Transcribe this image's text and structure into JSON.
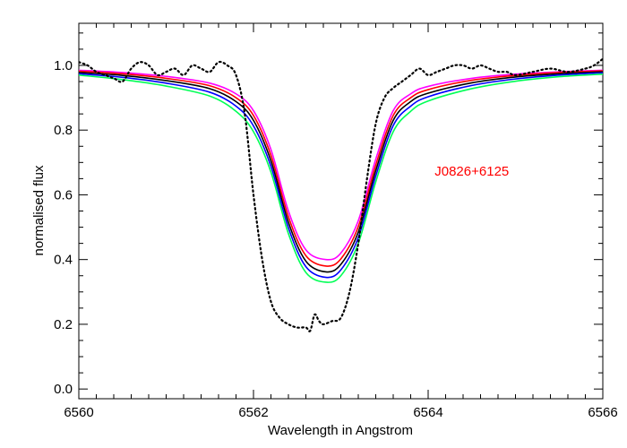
{
  "chart_data": {
    "type": "line",
    "xlabel": "Wavelength in Angstrom",
    "ylabel": "normalised flux",
    "xlim": [
      6560,
      6566
    ],
    "ylim": [
      -0.03,
      1.13
    ],
    "grid": false,
    "legend": "none",
    "x_ticks": [
      6560,
      6562,
      6564,
      6566
    ],
    "x_tick_labels": [
      "6560",
      "6562",
      "6564",
      "6566"
    ],
    "y_ticks": [
      0.0,
      0.2,
      0.4,
      0.6,
      0.8,
      1.0
    ],
    "y_tick_labels": [
      "0.0",
      "0.2",
      "0.4",
      "0.6",
      "0.8",
      "1.0"
    ],
    "annotation": {
      "text": "J0826+6125",
      "x": 6564.5,
      "y": 0.66,
      "color": "#ff0000"
    },
    "model_profile": {
      "center": 6562.83,
      "x": [
        6560.0,
        6560.5,
        6561.0,
        6561.5,
        6561.8,
        6562.0,
        6562.2,
        6562.4,
        6562.6,
        6562.83,
        6563.0,
        6563.2,
        6563.4,
        6563.6,
        6563.8,
        6564.0,
        6564.5,
        6565.0,
        6565.5,
        6566.0
      ]
    },
    "series": [
      {
        "color": "#ff00ff",
        "style": "solid",
        "y": [
          0.985,
          0.978,
          0.966,
          0.945,
          0.912,
          0.86,
          0.74,
          0.55,
          0.43,
          0.4,
          0.42,
          0.52,
          0.71,
          0.86,
          0.912,
          0.935,
          0.96,
          0.973,
          0.98,
          0.985
        ]
      },
      {
        "color": "#ff0000",
        "style": "solid",
        "y": [
          0.982,
          0.974,
          0.96,
          0.937,
          0.9,
          0.845,
          0.722,
          0.532,
          0.412,
          0.38,
          0.402,
          0.502,
          0.692,
          0.845,
          0.9,
          0.925,
          0.954,
          0.969,
          0.978,
          0.983
        ]
      },
      {
        "color": "#000000",
        "style": "solid",
        "y": [
          0.978,
          0.969,
          0.953,
          0.928,
          0.888,
          0.83,
          0.705,
          0.515,
          0.395,
          0.362,
          0.385,
          0.485,
          0.675,
          0.83,
          0.888,
          0.914,
          0.946,
          0.964,
          0.974,
          0.98
        ]
      },
      {
        "color": "#0000ff",
        "style": "solid",
        "y": [
          0.974,
          0.963,
          0.945,
          0.917,
          0.874,
          0.813,
          0.688,
          0.498,
          0.378,
          0.345,
          0.368,
          0.468,
          0.658,
          0.814,
          0.874,
          0.903,
          0.938,
          0.958,
          0.97,
          0.977
        ]
      },
      {
        "color": "#00ff55",
        "style": "solid",
        "y": [
          0.97,
          0.956,
          0.936,
          0.905,
          0.858,
          0.795,
          0.67,
          0.48,
          0.36,
          0.33,
          0.35,
          0.45,
          0.64,
          0.795,
          0.858,
          0.89,
          0.928,
          0.951,
          0.965,
          0.973
        ]
      },
      {
        "color": "#000000",
        "style": "dotted",
        "x": [
          6560.0,
          6560.1,
          6560.2,
          6560.3,
          6560.4,
          6560.5,
          6560.6,
          6560.7,
          6560.8,
          6560.9,
          6561.0,
          6561.1,
          6561.2,
          6561.3,
          6561.4,
          6561.5,
          6561.6,
          6561.7,
          6561.8,
          6561.9,
          6562.0,
          6562.1,
          6562.2,
          6562.3,
          6562.4,
          6562.5,
          6562.6,
          6562.65,
          6562.7,
          6562.75,
          6562.8,
          6562.9,
          6563.0,
          6563.1,
          6563.2,
          6563.3,
          6563.4,
          6563.5,
          6563.6,
          6563.7,
          6563.8,
          6563.9,
          6564.0,
          6564.1,
          6564.2,
          6564.3,
          6564.4,
          6564.5,
          6564.6,
          6564.7,
          6564.8,
          6564.9,
          6565.0,
          6565.2,
          6565.4,
          6565.6,
          6565.8,
          6565.9,
          6566.0
        ],
        "y": [
          1.01,
          1.0,
          0.98,
          0.97,
          0.96,
          0.95,
          0.99,
          1.01,
          1.0,
          0.97,
          0.98,
          0.99,
          0.97,
          1.0,
          0.99,
          0.98,
          1.01,
          1.0,
          0.97,
          0.85,
          0.6,
          0.4,
          0.27,
          0.22,
          0.2,
          0.19,
          0.19,
          0.18,
          0.23,
          0.21,
          0.2,
          0.21,
          0.22,
          0.3,
          0.45,
          0.65,
          0.82,
          0.9,
          0.93,
          0.95,
          0.97,
          0.99,
          0.97,
          0.98,
          0.99,
          1.0,
          1.0,
          0.99,
          1.0,
          0.99,
          0.98,
          0.98,
          0.97,
          0.98,
          0.99,
          0.98,
          0.99,
          1.0,
          1.02
        ]
      }
    ]
  }
}
